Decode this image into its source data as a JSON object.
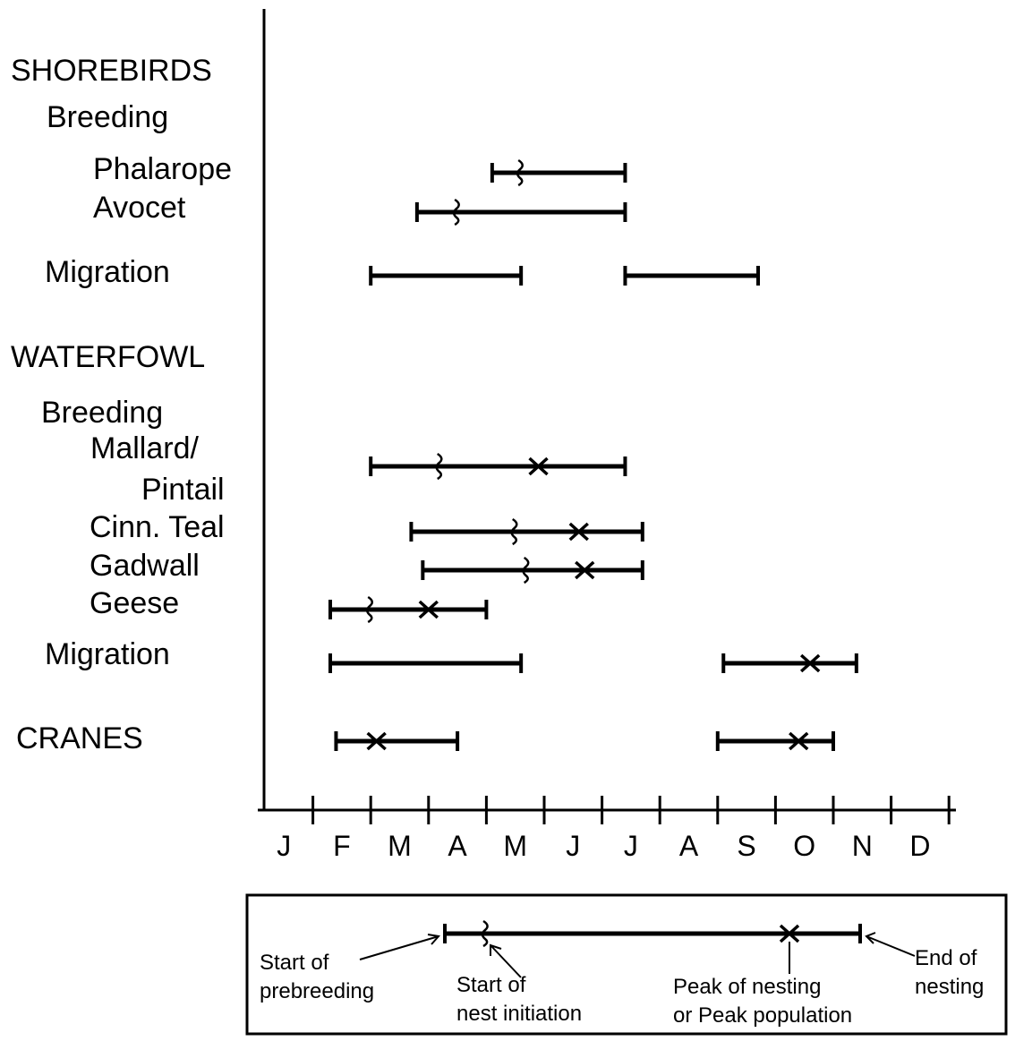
{
  "chart_data": {
    "type": "timeline",
    "groups": [
      {
        "name": "SHOREBIRDS",
        "sections": [
          {
            "name": "Breeding",
            "rows": [
              {
                "label": [
                  "Phalarope"
                ],
                "bars": [
                  {
                    "start": 4.1,
                    "end": 6.4,
                    "initiation": 4.6
                  }
                ]
              },
              {
                "label": [
                  "Avocet"
                ],
                "bars": [
                  {
                    "start": 2.8,
                    "end": 6.4,
                    "initiation": 3.5
                  }
                ]
              }
            ]
          },
          {
            "name": "Migration",
            "bars": [
              {
                "start": 2.0,
                "end": 4.6
              },
              {
                "start": 6.4,
                "end": 8.7
              }
            ]
          }
        ]
      },
      {
        "name": "WATERFOWL",
        "sections": [
          {
            "name": "Breeding",
            "rows": [
              {
                "label": [
                  "Mallard/",
                  "Pintail"
                ],
                "bars": [
                  {
                    "start": 2.0,
                    "end": 6.4,
                    "initiation": 3.2,
                    "peak": 4.9
                  }
                ]
              },
              {
                "label": [
                  "Cinn. Teal"
                ],
                "bars": [
                  {
                    "start": 2.7,
                    "end": 6.7,
                    "initiation": 4.5,
                    "peak": 5.6
                  }
                ]
              },
              {
                "label": [
                  "Gadwall"
                ],
                "bars": [
                  {
                    "start": 2.9,
                    "end": 6.7,
                    "initiation": 4.7,
                    "peak": 5.7
                  }
                ]
              },
              {
                "label": [
                  "Geese"
                ],
                "bars": [
                  {
                    "start": 1.3,
                    "end": 4.0,
                    "initiation": 2.0,
                    "peak": 3.0
                  }
                ]
              }
            ]
          },
          {
            "name": "Migration",
            "bars": [
              {
                "start": 1.3,
                "end": 4.6
              },
              {
                "start": 8.1,
                "end": 10.4,
                "peak": 9.6
              }
            ]
          }
        ]
      },
      {
        "name": "CRANES",
        "bars": [
          {
            "start": 1.4,
            "end": 3.5,
            "peak": 2.1
          },
          {
            "start": 8.0,
            "end": 10.0,
            "peak": 9.4
          }
        ]
      }
    ],
    "categories": [
      "J",
      "F",
      "M",
      "A",
      "M",
      "J",
      "J",
      "A",
      "S",
      "O",
      "N",
      "D"
    ],
    "xlim": [
      0,
      12
    ],
    "xticks": [
      1,
      2,
      3,
      4,
      5,
      6,
      7,
      8,
      9,
      10,
      11,
      12
    ],
    "legend": [
      [
        "Start of",
        "prebreeding"
      ],
      [
        "Start of",
        "nest initiation"
      ],
      [
        "Peak of nesting",
        "or Peak population"
      ],
      [
        "End of",
        "nesting"
      ]
    ]
  }
}
